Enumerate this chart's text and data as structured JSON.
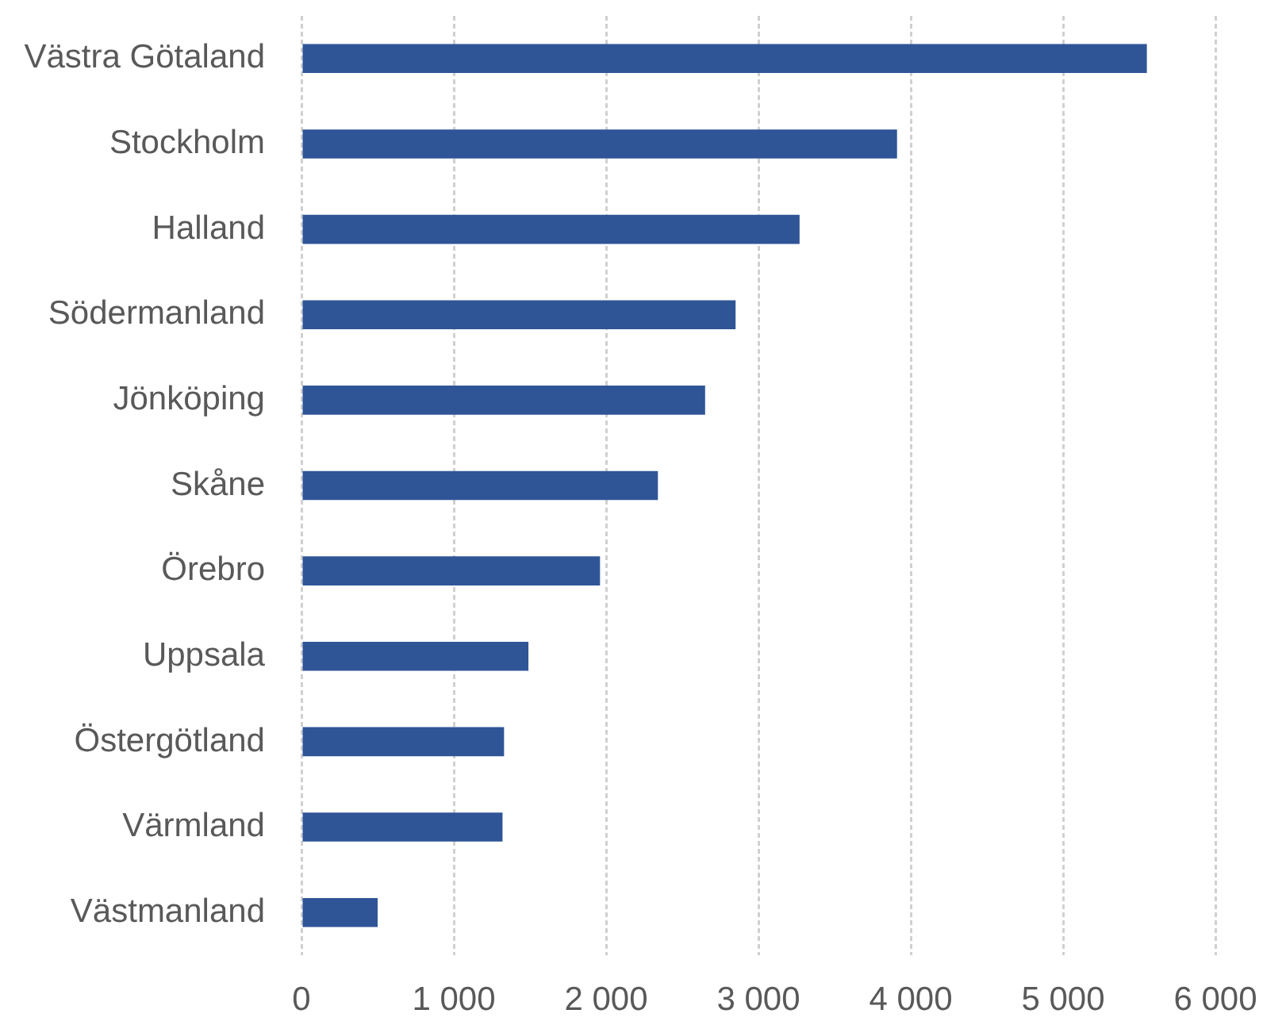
{
  "chart_data": {
    "type": "bar",
    "orientation": "horizontal",
    "categories": [
      "Västra Götaland",
      "Stockholm",
      "Halland",
      "Södermanland",
      "Jönköping",
      "Skåne",
      "Örebro",
      "Uppsala",
      "Östergötland",
      "Värmland",
      "Västmanland"
    ],
    "values": [
      5550,
      3910,
      3270,
      2850,
      2650,
      2340,
      1960,
      1490,
      1330,
      1320,
      500
    ],
    "color": "#2f5597",
    "xlim": [
      0,
      6000
    ],
    "xticks": [
      0,
      {
        "value": 1000,
        "label": "1 000"
      },
      {
        "value": 2000,
        "label": "2 000"
      },
      {
        "value": 3000,
        "label": "3 000"
      },
      {
        "value": 4000,
        "label": "4 000"
      },
      {
        "value": 5000,
        "label": "5 000"
      },
      {
        "value": 6000,
        "label": "6 000"
      }
    ],
    "grid": "x"
  }
}
